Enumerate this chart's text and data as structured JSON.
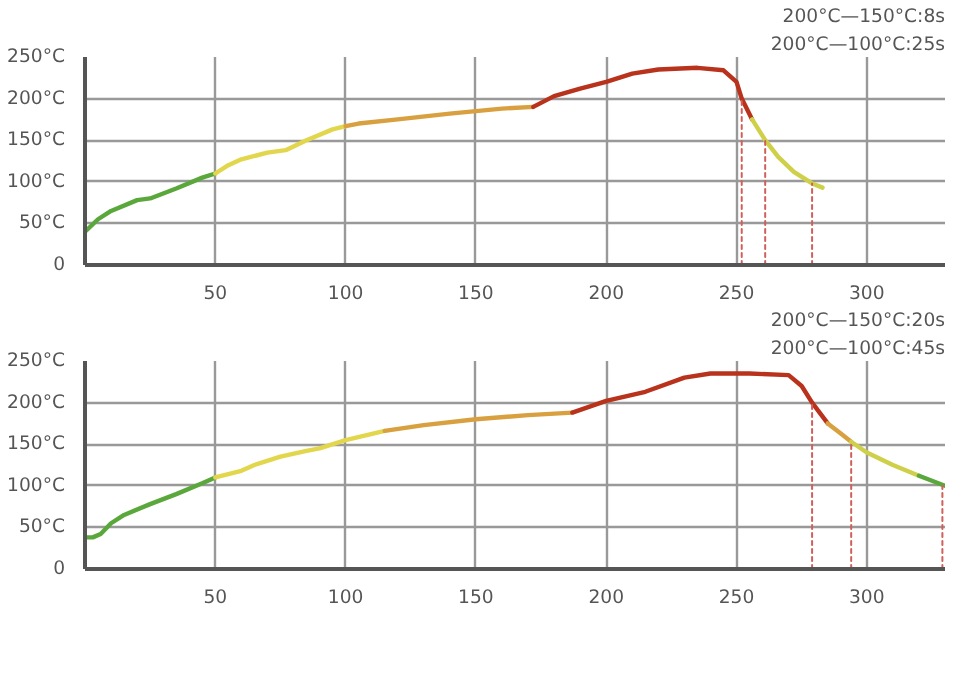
{
  "chart_data": [
    {
      "type": "line",
      "annotations": [
        "200°C—150°C:8s",
        "200°C—100°C:25s"
      ],
      "xlim": [
        0,
        330
      ],
      "ylim": [
        0,
        250
      ],
      "xticks": [
        50,
        100,
        150,
        200,
        250,
        300
      ],
      "yticks": [
        0,
        {
          "value": 50,
          "label": "50°C"
        },
        {
          "value": 100,
          "label": "100°C"
        },
        {
          "value": 150,
          "label": "150°C"
        },
        {
          "value": 200,
          "label": "200°C"
        },
        {
          "value": 250,
          "label": "250°C"
        }
      ],
      "grid": true,
      "series": [
        {
          "color": "#5aa83c",
          "x": [
            0,
            5,
            10,
            20,
            25,
            35,
            45,
            50
          ],
          "values": [
            40,
            55,
            65,
            78,
            80,
            92,
            105,
            110
          ]
        },
        {
          "color": "#e2d64c",
          "x": [
            50,
            55,
            60,
            70,
            77,
            85,
            95,
            100
          ],
          "values": [
            110,
            120,
            127,
            135,
            138,
            150,
            163,
            167
          ]
        },
        {
          "color": "#d9a040",
          "x": [
            100,
            105,
            120,
            140,
            160,
            172
          ],
          "values": [
            167,
            170,
            175,
            182,
            188,
            190
          ]
        },
        {
          "color": "#b8321c",
          "x": [
            172,
            180,
            190,
            200,
            210,
            220,
            235,
            245,
            250,
            252,
            256
          ],
          "values": [
            190,
            203,
            212,
            220,
            230,
            235,
            237,
            234,
            220,
            200,
            175
          ]
        },
        {
          "color": "#cfd04a",
          "x": [
            256,
            261,
            266,
            272,
            279,
            283
          ],
          "values": [
            175,
            150,
            130,
            112,
            98,
            93
          ]
        },
        {
          "type": "line",
          "line_style": "dotted",
          "color": "#d0605a",
          "x": [
            252,
            252
          ],
          "values": [
            0,
            200
          ]
        },
        {
          "type": "line",
          "line_style": "dotted",
          "color": "#d0605a",
          "x": [
            261,
            261
          ],
          "values": [
            0,
            150
          ]
        },
        {
          "type": "line",
          "line_style": "dotted",
          "color": "#d0605a",
          "x": [
            279,
            279
          ],
          "values": [
            0,
            98
          ]
        }
      ]
    },
    {
      "type": "line",
      "annotations": [
        "200°C—150°C:20s",
        "200°C—100°C:45s"
      ],
      "xlim": [
        0,
        330
      ],
      "ylim": [
        0,
        250
      ],
      "xticks": [
        50,
        100,
        150,
        200,
        250,
        300
      ],
      "yticks": [
        0,
        {
          "value": 50,
          "label": "50°C"
        },
        {
          "value": 100,
          "label": "100°C"
        },
        {
          "value": 150,
          "label": "150°C"
        },
        {
          "value": 200,
          "label": "200°C"
        },
        {
          "value": 250,
          "label": "250°C"
        }
      ],
      "grid": true,
      "series": [
        {
          "color": "#5aa83c",
          "x": [
            0,
            3,
            6,
            10,
            15,
            25,
            35,
            45,
            50
          ],
          "values": [
            38,
            38,
            42,
            55,
            65,
            78,
            90,
            103,
            110
          ]
        },
        {
          "color": "#e2d64c",
          "x": [
            50,
            60,
            65,
            75,
            85,
            90,
            100,
            115
          ],
          "values": [
            110,
            118,
            125,
            135,
            142,
            145,
            155,
            166
          ]
        },
        {
          "color": "#d9a040",
          "x": [
            115,
            130,
            150,
            170,
            187
          ],
          "values": [
            166,
            173,
            180,
            185,
            188
          ]
        },
        {
          "color": "#b8321c",
          "x": [
            187,
            200,
            215,
            230,
            240,
            255,
            270,
            275,
            279,
            285
          ],
          "values": [
            188,
            202,
            213,
            230,
            235,
            235,
            233,
            220,
            200,
            175
          ]
        },
        {
          "color": "#d9a040",
          "x": [
            285,
            290,
            294
          ],
          "values": [
            175,
            163,
            153
          ]
        },
        {
          "color": "#cfd04a",
          "x": [
            294,
            300,
            310,
            320
          ],
          "values": [
            153,
            140,
            125,
            112
          ]
        },
        {
          "color": "#5aa83c",
          "x": [
            320,
            330
          ],
          "values": [
            112,
            100
          ]
        },
        {
          "type": "line",
          "line_style": "dotted",
          "color": "#d0605a",
          "x": [
            279,
            279
          ],
          "values": [
            0,
            200
          ]
        },
        {
          "type": "line",
          "line_style": "dotted",
          "color": "#d0605a",
          "x": [
            294,
            294
          ],
          "values": [
            0,
            150
          ]
        },
        {
          "type": "line",
          "line_style": "dotted",
          "color": "#d0605a",
          "x": [
            329,
            329
          ],
          "values": [
            0,
            100
          ]
        }
      ]
    }
  ]
}
